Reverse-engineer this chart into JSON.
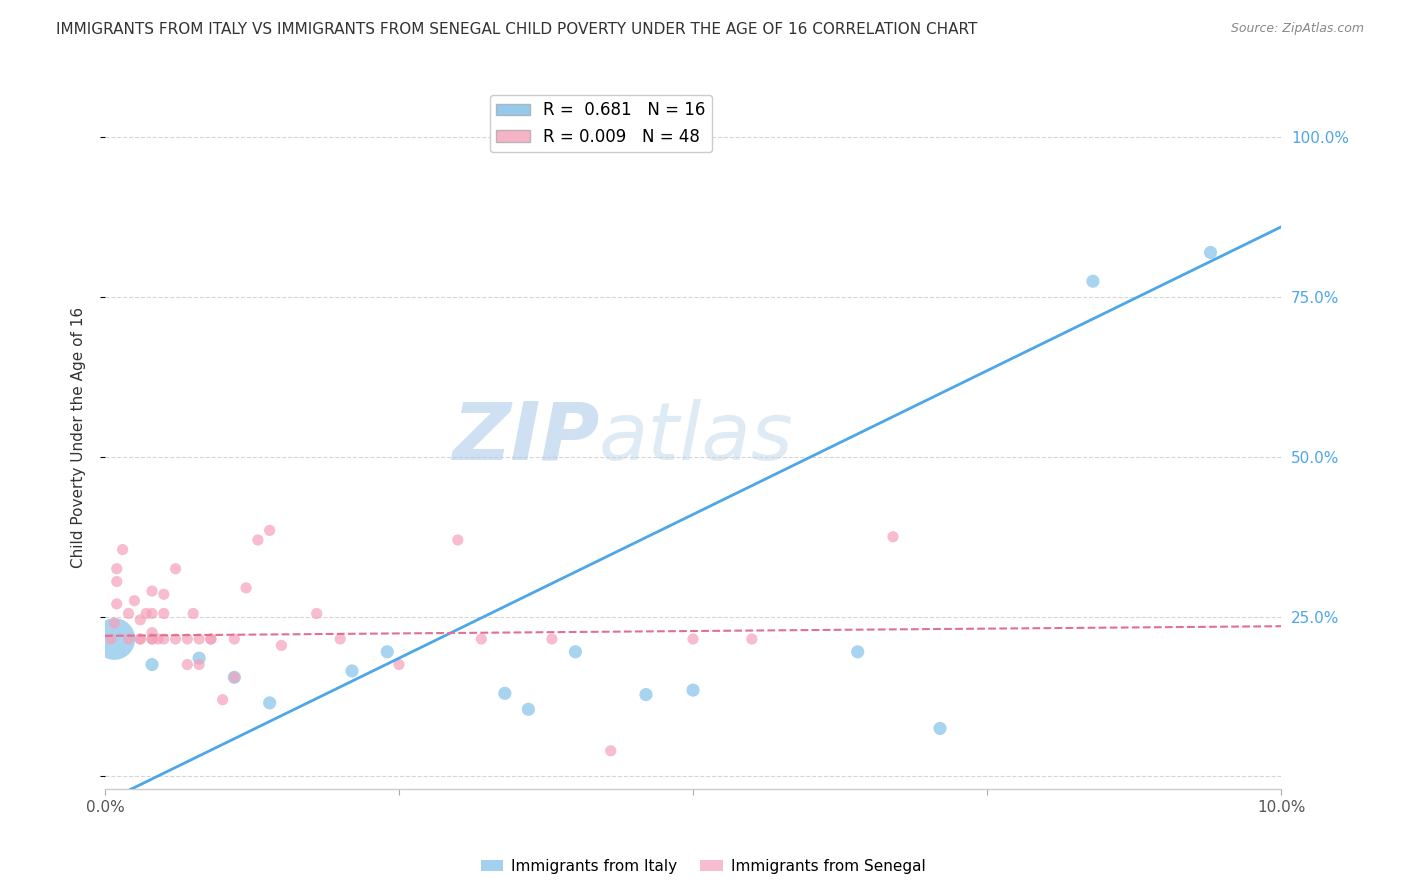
{
  "title": "IMMIGRANTS FROM ITALY VS IMMIGRANTS FROM SENEGAL CHILD POVERTY UNDER THE AGE OF 16 CORRELATION CHART",
  "source": "Source: ZipAtlas.com",
  "ylabel": "Child Poverty Under the Age of 16",
  "xlim": [
    0,
    0.1
  ],
  "ylim": [
    -0.02,
    1.08
  ],
  "yticks": [
    0.0,
    0.25,
    0.5,
    0.75,
    1.0
  ],
  "ytick_labels": [
    "",
    "25.0%",
    "50.0%",
    "75.0%",
    "100.0%"
  ],
  "xticks": [
    0,
    0.025,
    0.05,
    0.075,
    0.1
  ],
  "xtick_labels": [
    "0.0%",
    "",
    "",
    "",
    "10.0%"
  ],
  "watermark_zip": "ZIP",
  "watermark_atlas": "atlas",
  "italy_color": "#7bbde8",
  "senegal_color": "#f4a0b8",
  "italy_line_color": "#4da6e8",
  "senegal_line_color": "#e07090",
  "italy_R": "0.681",
  "italy_N": "16",
  "senegal_R": "0.009",
  "senegal_N": "48",
  "italy_points_x": [
    0.0008,
    0.004,
    0.008,
    0.011,
    0.014,
    0.021,
    0.024,
    0.034,
    0.036,
    0.04,
    0.046,
    0.05,
    0.064,
    0.071,
    0.084,
    0.094
  ],
  "italy_points_y": [
    0.215,
    0.175,
    0.185,
    0.155,
    0.115,
    0.165,
    0.195,
    0.13,
    0.105,
    0.195,
    0.128,
    0.135,
    0.195,
    0.075,
    0.775,
    0.82
  ],
  "italy_sizes": [
    900,
    90,
    90,
    90,
    90,
    90,
    90,
    90,
    90,
    90,
    90,
    90,
    90,
    90,
    90,
    90
  ],
  "senegal_points_x": [
    0.0005,
    0.0008,
    0.001,
    0.001,
    0.001,
    0.0015,
    0.002,
    0.002,
    0.0025,
    0.003,
    0.003,
    0.003,
    0.0035,
    0.004,
    0.004,
    0.004,
    0.004,
    0.004,
    0.0045,
    0.005,
    0.005,
    0.005,
    0.006,
    0.006,
    0.007,
    0.007,
    0.0075,
    0.008,
    0.008,
    0.009,
    0.009,
    0.01,
    0.011,
    0.011,
    0.012,
    0.013,
    0.014,
    0.015,
    0.018,
    0.02,
    0.025,
    0.03,
    0.032,
    0.038,
    0.043,
    0.05,
    0.055,
    0.067
  ],
  "senegal_points_y": [
    0.215,
    0.24,
    0.27,
    0.305,
    0.325,
    0.355,
    0.215,
    0.255,
    0.275,
    0.215,
    0.215,
    0.245,
    0.255,
    0.215,
    0.225,
    0.255,
    0.215,
    0.29,
    0.215,
    0.215,
    0.255,
    0.285,
    0.215,
    0.325,
    0.175,
    0.215,
    0.255,
    0.175,
    0.215,
    0.215,
    0.215,
    0.12,
    0.155,
    0.215,
    0.295,
    0.37,
    0.385,
    0.205,
    0.255,
    0.215,
    0.175,
    0.37,
    0.215,
    0.215,
    0.04,
    0.215,
    0.215,
    0.375
  ],
  "italy_line_x": [
    0.0,
    0.1
  ],
  "italy_line_y": [
    -0.04,
    0.86
  ],
  "senegal_line_x": [
    0.0,
    0.1
  ],
  "senegal_line_y": [
    0.22,
    0.235
  ],
  "grid_color": "#cccccc",
  "background_color": "#ffffff",
  "tick_label_color": "#4da6e8"
}
